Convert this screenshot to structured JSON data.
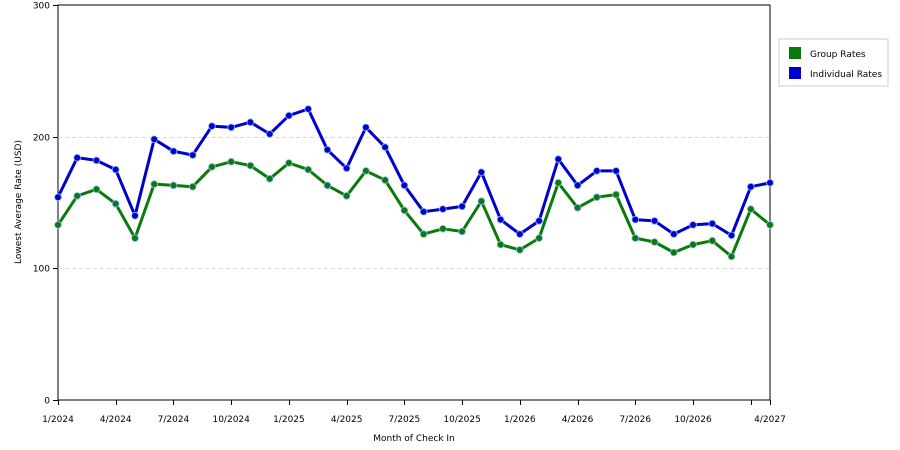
{
  "chart_data": {
    "type": "line",
    "xlabel": "Month of Check In",
    "ylabel": "Lowest Average Rate (USD)",
    "ylim": [
      0,
      300
    ],
    "y_ticks": [
      0,
      100,
      200,
      300
    ],
    "x_tick_labels": [
      "1/2024",
      "4/2024",
      "7/2024",
      "10/2024",
      "1/2025",
      "4/2025",
      "7/2025",
      "10/2025",
      "1/2026",
      "4/2026",
      "7/2026",
      "10/2026",
      "4/2027"
    ],
    "x_tick_months": [
      0,
      3,
      6,
      9,
      12,
      15,
      18,
      21,
      24,
      27,
      30,
      33,
      39
    ],
    "x_extra_tick_months": [
      36
    ],
    "x_range_months": [
      0,
      37
    ],
    "gridlines": "horizontal dashed at 100 and 200",
    "legend_position": "right",
    "series": [
      {
        "name": "Group Rates",
        "color": "#0a7a0a",
        "values": [
          133,
          155,
          160,
          149,
          123,
          164,
          163,
          162,
          177,
          181,
          178,
          168,
          180,
          175,
          163,
          155,
          174,
          167,
          144,
          126,
          130,
          128,
          151,
          118,
          114,
          123,
          165,
          146,
          154,
          156,
          123,
          120,
          112,
          118,
          121,
          109,
          145,
          133
        ]
      },
      {
        "name": "Individual Rates",
        "color": "#0000cc",
        "values": [
          154,
          184,
          182,
          175,
          140,
          198,
          189,
          186,
          208,
          207,
          211,
          202,
          216,
          221,
          190,
          176,
          207,
          192,
          163,
          143,
          145,
          147,
          173,
          137,
          126,
          136,
          183,
          163,
          174,
          174,
          137,
          136,
          126,
          133,
          134,
          125,
          162,
          165
        ]
      }
    ]
  }
}
